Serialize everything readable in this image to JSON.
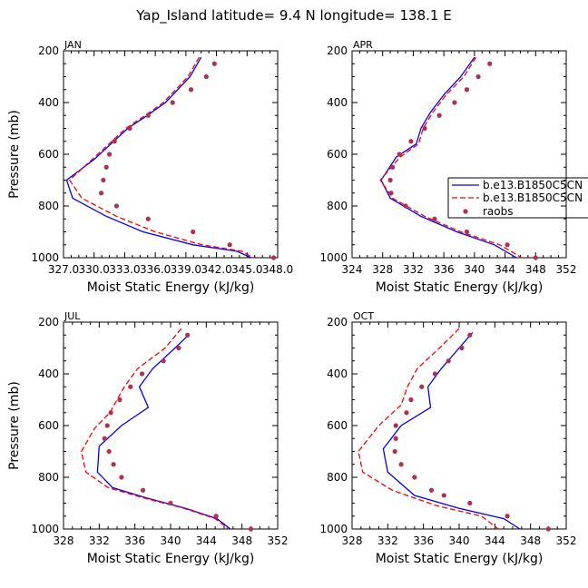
{
  "figure": {
    "title": "Yap_Island  latitude= 9.4 N longitude= 138.1 E"
  },
  "colors": {
    "series1": "#0000ff",
    "series2": "#ff0000",
    "raobs": "#b03050",
    "axis": "#000000"
  },
  "legend": {
    "placement": "right of APR panel",
    "entries": [
      "b.e13.B1850C5CN",
      "b.e13.B1850C5CN",
      "raobs"
    ]
  },
  "chart_data": [
    {
      "panel": "JAN",
      "type": "line",
      "xlabel": "Moist Static Energy (kJ/kg)",
      "ylabel": "Pressure (mb)",
      "xlim": [
        327.0,
        348.0
      ],
      "ylim": [
        1000,
        200
      ],
      "xticks": [
        327.0,
        330.0,
        333.0,
        336.0,
        339.0,
        342.0,
        345.0,
        348.0
      ],
      "xtick_labels": [
        "327.0",
        "330.0",
        "333.0",
        "336.0",
        "339.0",
        "342.0",
        "345.0",
        "348.0"
      ],
      "yticks": [
        200,
        400,
        600,
        800,
        1000
      ],
      "ytick_labels": [
        "200",
        "400",
        "600",
        "800",
        "1000"
      ],
      "series": [
        {
          "name": "b.e13.B1850C5CN",
          "style": "solid",
          "color": "#0000ff",
          "points": [
            [
              340.5,
              225
            ],
            [
              339.4,
              300
            ],
            [
              337.0,
              400
            ],
            [
              335.2,
              450
            ],
            [
              333.3,
              500
            ],
            [
              330.0,
              620
            ],
            [
              327.3,
              700
            ],
            [
              327.9,
              770
            ],
            [
              331.2,
              840
            ],
            [
              334.8,
              900
            ],
            [
              339.7,
              950
            ],
            [
              344.0,
              975
            ],
            [
              345.4,
              1000
            ]
          ]
        },
        {
          "name": "b.e13.B1850C5CN",
          "style": "dashed",
          "color": "#ff0000",
          "points": [
            [
              340.3,
              225
            ],
            [
              339.2,
              300
            ],
            [
              336.8,
              400
            ],
            [
              335.0,
              450
            ],
            [
              333.1,
              500
            ],
            [
              329.8,
              620
            ],
            [
              327.6,
              700
            ],
            [
              328.8,
              770
            ],
            [
              332.2,
              840
            ],
            [
              336.0,
              900
            ],
            [
              340.6,
              950
            ],
            [
              344.5,
              975
            ],
            [
              345.6,
              1000
            ]
          ]
        }
      ],
      "scatter": {
        "name": "raobs",
        "color": "#b03050",
        "points": [
          [
            341.8,
            250
          ],
          [
            341.0,
            300
          ],
          [
            339.5,
            350
          ],
          [
            337.7,
            400
          ],
          [
            335.3,
            450
          ],
          [
            333.5,
            500
          ],
          [
            332.0,
            550
          ],
          [
            331.5,
            600
          ],
          [
            331.2,
            650
          ],
          [
            330.9,
            700
          ],
          [
            330.7,
            750
          ],
          [
            332.2,
            800
          ],
          [
            335.3,
            850
          ],
          [
            339.7,
            900
          ],
          [
            343.3,
            950
          ],
          [
            347.6,
            1000
          ]
        ]
      }
    },
    {
      "panel": "APR",
      "type": "line",
      "xlabel": "Moist Static Energy (kJ/kg)",
      "ylabel": "",
      "xlim": [
        324,
        352
      ],
      "ylim": [
        1000,
        200
      ],
      "xticks": [
        324,
        328,
        332,
        336,
        340,
        344,
        348,
        352
      ],
      "xtick_labels": [
        "324",
        "328",
        "332",
        "336",
        "340",
        "344",
        "348",
        "352"
      ],
      "yticks": [
        200,
        400,
        600,
        800,
        1000
      ],
      "ytick_labels": [
        "200",
        "400",
        "600",
        "800",
        "1000"
      ],
      "series": [
        {
          "name": "b.e13.B1850C5CN",
          "style": "solid",
          "color": "#0000ff",
          "points": [
            [
              340.0,
              225
            ],
            [
              338.2,
              300
            ],
            [
              336.0,
              370
            ],
            [
              334.2,
              440
            ],
            [
              333.0,
              500
            ],
            [
              332.4,
              560
            ],
            [
              329.8,
              610
            ],
            [
              327.8,
              700
            ],
            [
              329.0,
              770
            ],
            [
              333.0,
              840
            ],
            [
              337.7,
              900
            ],
            [
              342.6,
              950
            ],
            [
              345.5,
              1000
            ]
          ]
        },
        {
          "name": "b.e13.B1850C5CN",
          "style": "dashed",
          "color": "#ff0000",
          "points": [
            [
              340.2,
              225
            ],
            [
              338.6,
              300
            ],
            [
              336.3,
              370
            ],
            [
              334.5,
              440
            ],
            [
              333.3,
              500
            ],
            [
              332.7,
              560
            ],
            [
              330.3,
              610
            ],
            [
              327.7,
              700
            ],
            [
              329.3,
              770
            ],
            [
              333.5,
              840
            ],
            [
              338.2,
              900
            ],
            [
              343.3,
              950
            ],
            [
              346.2,
              1000
            ]
          ]
        }
      ],
      "scatter": {
        "name": "raobs",
        "color": "#b03050",
        "points": [
          [
            342.0,
            250
          ],
          [
            340.5,
            300
          ],
          [
            339.0,
            350
          ],
          [
            337.4,
            400
          ],
          [
            335.4,
            450
          ],
          [
            333.5,
            500
          ],
          [
            331.7,
            550
          ],
          [
            330.2,
            600
          ],
          [
            329.3,
            650
          ],
          [
            329.0,
            700
          ],
          [
            329.1,
            750
          ],
          [
            331.0,
            800
          ],
          [
            334.8,
            850
          ],
          [
            339.0,
            900
          ],
          [
            344.3,
            950
          ],
          [
            348.0,
            1000
          ]
        ]
      }
    },
    {
      "panel": "JUL",
      "type": "line",
      "xlabel": "Moist Static Energy (kJ/kg)",
      "ylabel": "Pressure (mb)",
      "xlim": [
        328,
        352
      ],
      "ylim": [
        1000,
        200
      ],
      "xticks": [
        328,
        332,
        336,
        340,
        344,
        348,
        352
      ],
      "xtick_labels": [
        "328",
        "332",
        "336",
        "340",
        "344",
        "348",
        "352"
      ],
      "yticks": [
        200,
        400,
        600,
        800,
        1000
      ],
      "ytick_labels": [
        "200",
        "400",
        "600",
        "800",
        "1000"
      ],
      "series": [
        {
          "name": "b.e13.B1850C5CN",
          "style": "solid",
          "color": "#0000ff",
          "points": [
            [
              342.0,
              250
            ],
            [
              340.5,
              300
            ],
            [
              338.0,
              380
            ],
            [
              336.5,
              450
            ],
            [
              337.5,
              530
            ],
            [
              334.5,
              600
            ],
            [
              332.0,
              680
            ],
            [
              331.8,
              780
            ],
            [
              333.5,
              840
            ],
            [
              337.3,
              880
            ],
            [
              341.7,
              920
            ],
            [
              345.2,
              960
            ],
            [
              346.7,
              1000
            ]
          ]
        },
        {
          "name": "b.e13.B1850C5CN",
          "style": "dashed",
          "color": "#ff0000",
          "points": [
            [
              341.2,
              225
            ],
            [
              339.4,
              300
            ],
            [
              336.3,
              380
            ],
            [
              334.8,
              450
            ],
            [
              333.2,
              550
            ],
            [
              331.5,
              610
            ],
            [
              330.0,
              700
            ],
            [
              330.5,
              780
            ],
            [
              333.0,
              840
            ],
            [
              337.0,
              880
            ],
            [
              341.5,
              920
            ],
            [
              345.0,
              960
            ],
            [
              346.5,
              1000
            ]
          ]
        }
      ],
      "scatter": {
        "name": "raobs",
        "color": "#b03050",
        "points": [
          [
            341.9,
            250
          ],
          [
            340.9,
            300
          ],
          [
            339.2,
            350
          ],
          [
            336.8,
            400
          ],
          [
            335.5,
            450
          ],
          [
            334.3,
            500
          ],
          [
            333.3,
            550
          ],
          [
            332.9,
            600
          ],
          [
            332.6,
            650
          ],
          [
            333.1,
            700
          ],
          [
            333.6,
            750
          ],
          [
            334.5,
            800
          ],
          [
            336.9,
            850
          ],
          [
            340.0,
            900
          ],
          [
            345.1,
            950
          ],
          [
            349.0,
            1000
          ]
        ]
      }
    },
    {
      "panel": "OCT",
      "type": "line",
      "xlabel": "Moist Static Energy (kJ/kg)",
      "ylabel": "",
      "xlim": [
        328,
        352
      ],
      "ylim": [
        1000,
        200
      ],
      "xticks": [
        328,
        332,
        336,
        340,
        344,
        348,
        352
      ],
      "xtick_labels": [
        "328",
        "332",
        "336",
        "340",
        "344",
        "348",
        "352"
      ],
      "yticks": [
        200,
        400,
        600,
        800,
        1000
      ],
      "ytick_labels": [
        "200",
        "400",
        "600",
        "800",
        "1000"
      ],
      "series": [
        {
          "name": "b.e13.B1850C5CN",
          "style": "solid",
          "color": "#0000ff",
          "points": [
            [
              341.5,
              240
            ],
            [
              340.0,
              300
            ],
            [
              338.0,
              380
            ],
            [
              336.5,
              450
            ],
            [
              336.8,
              530
            ],
            [
              333.5,
              600
            ],
            [
              331.5,
              690
            ],
            [
              332.0,
              780
            ],
            [
              335.0,
              870
            ],
            [
              340.0,
              920
            ],
            [
              345.0,
              960
            ],
            [
              346.8,
              1000
            ]
          ]
        },
        {
          "name": "b.e13.B1850C5CN",
          "style": "dashed",
          "color": "#ff0000",
          "points": [
            [
              340.0,
              225
            ],
            [
              337.8,
              300
            ],
            [
              335.3,
              380
            ],
            [
              334.2,
              450
            ],
            [
              333.5,
              520
            ],
            [
              331.0,
              600
            ],
            [
              328.7,
              700
            ],
            [
              329.2,
              780
            ],
            [
              332.5,
              850
            ],
            [
              337.5,
              910
            ],
            [
              342.5,
              950
            ],
            [
              344.4,
              1000
            ]
          ]
        }
      ],
      "scatter": {
        "name": "raobs",
        "color": "#b03050",
        "points": [
          [
            341.2,
            250
          ],
          [
            340.3,
            300
          ],
          [
            338.8,
            350
          ],
          [
            337.3,
            400
          ],
          [
            335.8,
            450
          ],
          [
            334.6,
            500
          ],
          [
            334.1,
            550
          ],
          [
            332.9,
            600
          ],
          [
            332.9,
            650
          ],
          [
            332.8,
            700
          ],
          [
            333.5,
            750
          ],
          [
            335.0,
            800
          ],
          [
            336.9,
            850
          ],
          [
            338.3,
            870
          ],
          [
            341.2,
            900
          ],
          [
            345.4,
            950
          ],
          [
            350.0,
            1000
          ]
        ]
      }
    }
  ]
}
